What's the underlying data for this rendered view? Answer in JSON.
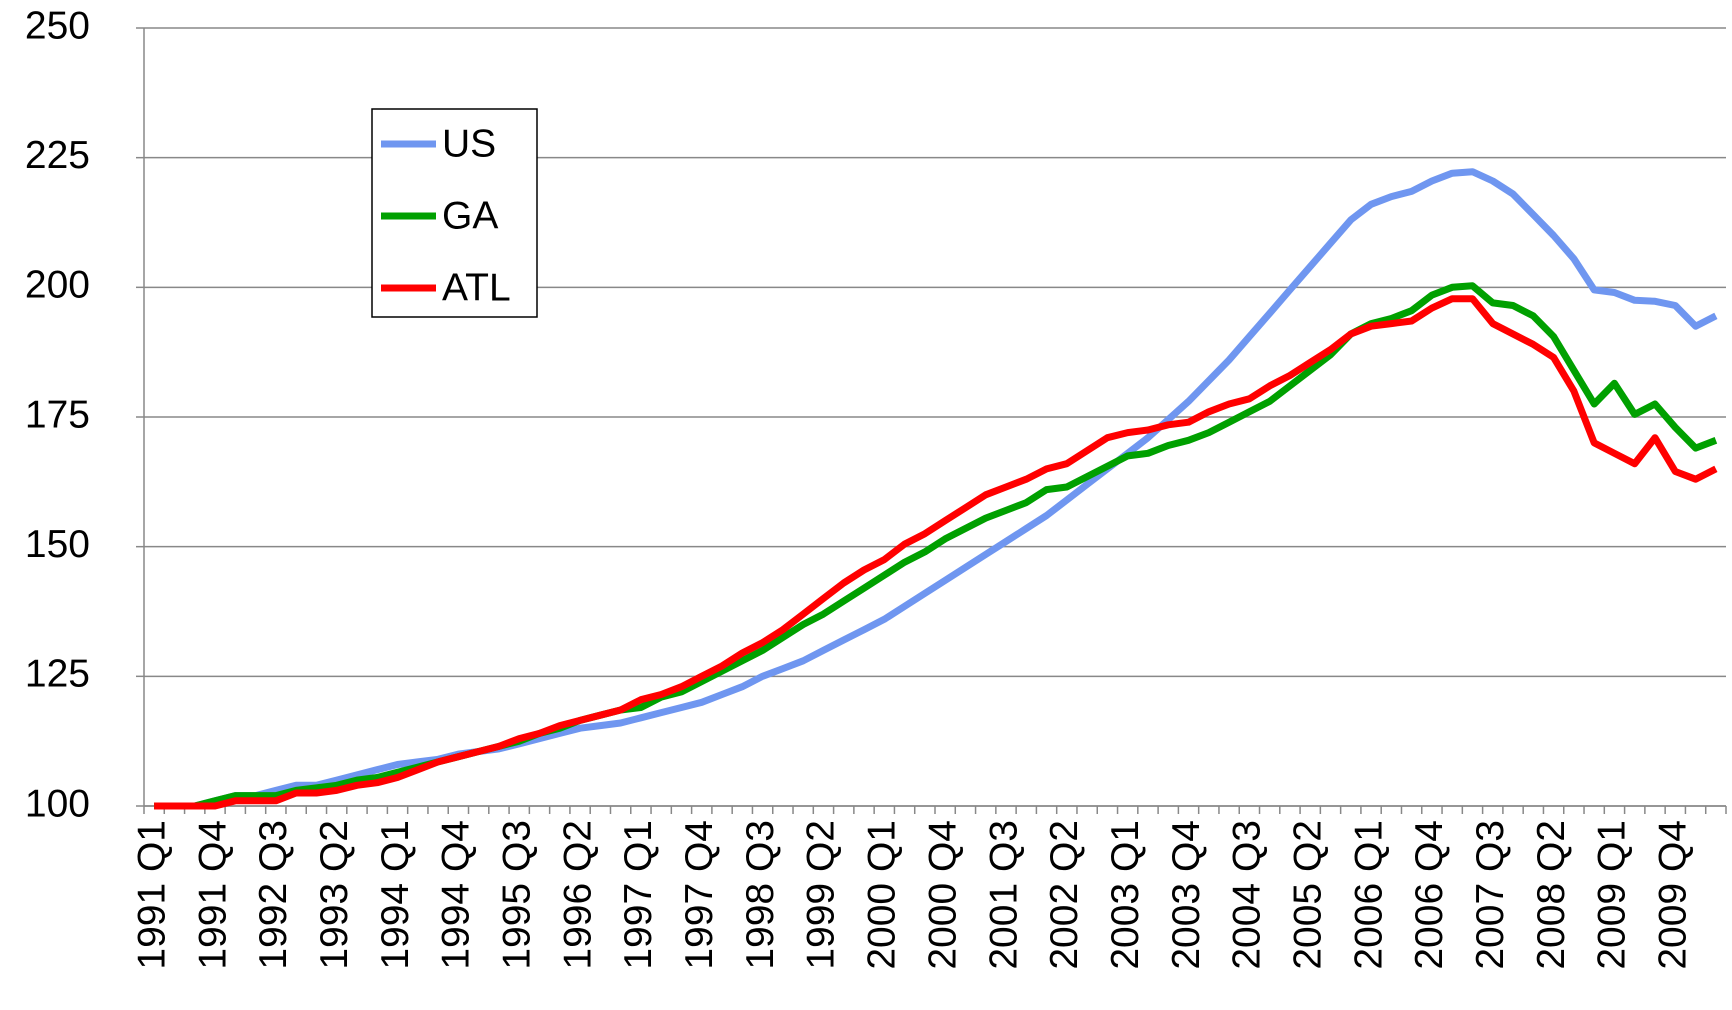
{
  "chart_data": {
    "type": "line",
    "categories": [
      "1991 Q1",
      null,
      null,
      "1991 Q4",
      null,
      null,
      "1992 Q3",
      null,
      null,
      "1993 Q2",
      null,
      null,
      "1994 Q1",
      null,
      null,
      "1994 Q4",
      null,
      null,
      "1995 Q3",
      null,
      null,
      "1996 Q2",
      null,
      null,
      "1997 Q1",
      null,
      null,
      "1997 Q4",
      null,
      null,
      "1998 Q3",
      null,
      null,
      "1999 Q2",
      null,
      null,
      "2000 Q1",
      null,
      null,
      "2000 Q4",
      null,
      null,
      "2001 Q3",
      null,
      null,
      "2002 Q2",
      null,
      null,
      "2003 Q1",
      null,
      null,
      "2003 Q4",
      null,
      null,
      "2004 Q3",
      null,
      null,
      "2005 Q2",
      null,
      null,
      "2006 Q1",
      null,
      null,
      "2006 Q4",
      null,
      null,
      "2007 Q3",
      null,
      null,
      "2008 Q2",
      null,
      null,
      "2009 Q1",
      null,
      null,
      "2009 Q4",
      null,
      null
    ],
    "series": [
      {
        "name": "US",
        "color": "#6f96f0",
        "values": [
          100,
          100,
          100,
          101,
          102,
          102,
          103,
          104,
          104,
          105,
          106,
          107,
          108,
          108.5,
          109,
          110,
          110.5,
          111,
          112,
          113,
          114,
          115,
          115.5,
          116,
          117,
          118,
          119,
          120,
          121.5,
          123,
          125,
          126.5,
          128,
          130,
          132,
          134,
          136,
          138.5,
          141,
          143.5,
          146,
          148.5,
          151,
          153.5,
          156,
          159,
          162,
          165,
          168,
          171,
          174.5,
          178,
          182,
          186,
          190.5,
          195,
          199.5,
          204,
          208.5,
          213,
          216,
          217.5,
          218.5,
          220.5,
          222,
          222.3,
          220.5,
          218,
          214,
          210,
          205.5,
          199.5,
          199,
          197.5,
          197.3,
          196.5,
          192.5,
          194.5
        ]
      },
      {
        "name": "GA",
        "color": "#00a000",
        "values": [
          100,
          100,
          100,
          101,
          102,
          102,
          102,
          103,
          103.5,
          104,
          105,
          105.5,
          106.5,
          107.5,
          108.5,
          109.5,
          110.5,
          111.5,
          112.5,
          114,
          115,
          116.5,
          117.5,
          118.5,
          119,
          121,
          122,
          124,
          126,
          128,
          130,
          132.5,
          135,
          137,
          139.5,
          142,
          144.5,
          147,
          149,
          151.5,
          153.5,
          155.5,
          157,
          158.5,
          161,
          161.5,
          163.5,
          165.5,
          167.5,
          168,
          169.5,
          170.5,
          172,
          174,
          176,
          178,
          181,
          184,
          187,
          191,
          193,
          194,
          195.5,
          198.5,
          200,
          200.3,
          197,
          196.5,
          194.5,
          190.5,
          184,
          177.5,
          181.5,
          175.5,
          177.5,
          173,
          169,
          170.5
        ]
      },
      {
        "name": "ATL",
        "color": "#ff0000",
        "values": [
          100,
          100,
          100,
          100,
          101,
          101,
          101,
          102.5,
          102.5,
          103,
          104,
          104.5,
          105.5,
          107,
          108.5,
          109.5,
          110.5,
          111.5,
          113,
          114,
          115.5,
          116.5,
          117.5,
          118.5,
          120.5,
          121.5,
          123,
          125,
          127,
          129.5,
          131.5,
          134,
          137,
          140,
          143,
          145.5,
          147.5,
          150.5,
          152.5,
          155,
          157.5,
          160,
          161.5,
          163,
          165,
          166,
          168.5,
          171,
          172,
          172.5,
          173.5,
          174,
          176,
          177.5,
          178.5,
          181,
          183,
          185.5,
          188,
          191,
          192.5,
          193,
          193.5,
          196,
          197.8,
          197.8,
          193,
          191,
          189,
          186.5,
          180,
          170,
          168,
          166,
          171,
          164.5,
          163,
          165
        ]
      }
    ],
    "ylim": [
      100,
      250
    ],
    "yticks": [
      100,
      125,
      150,
      175,
      200,
      225,
      250
    ],
    "grid": true
  }
}
